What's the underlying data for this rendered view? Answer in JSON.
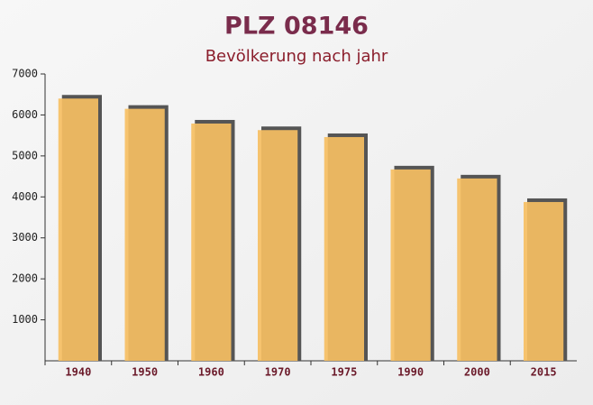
{
  "chart_data": {
    "type": "bar",
    "title": "PLZ 08146",
    "subtitle": "Bevölkerung nach jahr",
    "categories": [
      "1940",
      "1950",
      "1960",
      "1970",
      "1975",
      "1990",
      "2000",
      "2015"
    ],
    "values": [
      6400,
      6150,
      5790,
      5630,
      5460,
      4670,
      4450,
      3875
    ],
    "color": "#f6bf63",
    "ylim": [
      0,
      7000
    ],
    "yticks": [
      1000,
      2000,
      3000,
      4000,
      5000,
      6000,
      7000
    ]
  }
}
